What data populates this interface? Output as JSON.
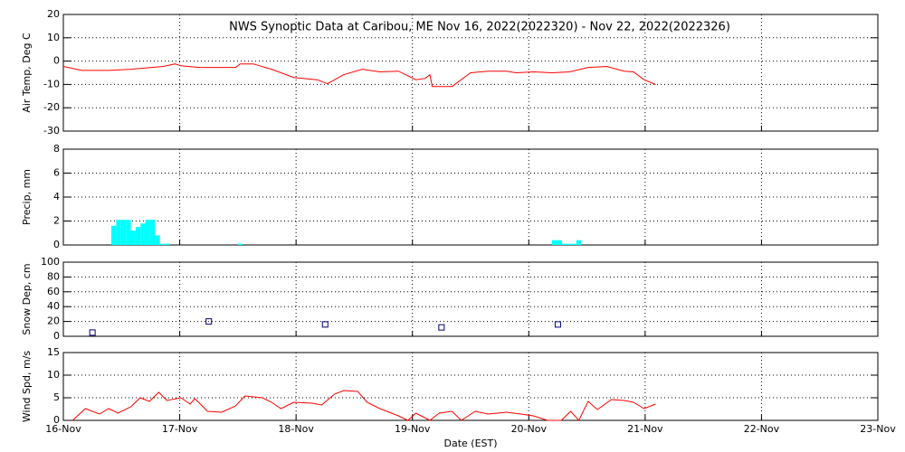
{
  "chart_data": [
    {
      "type": "line",
      "title": "NWS Synoptic Data at Caribou, ME   Nov 16, 2022(2022320) - Nov 22, 2022(2022326)",
      "y_label": "Air Temp, Deg C",
      "ylim": [
        -30,
        20
      ],
      "yticks": [
        -30,
        -20,
        -10,
        0,
        10,
        20
      ],
      "grid": true,
      "color": "#ff0000",
      "x": [
        0,
        0.16,
        0.39,
        0.58,
        0.7,
        0.86,
        0.96,
        1.01,
        1.17,
        1.48,
        1.52,
        1.63,
        1.79,
        1.98,
        2.18,
        2.27,
        2.41,
        2.57,
        2.72,
        2.88,
        3.03,
        3.11,
        3.15,
        3.17,
        3.27,
        3.34,
        3.5,
        3.65,
        3.81,
        3.89,
        4.04,
        4.2,
        4.35,
        4.51,
        4.67,
        4.82,
        4.9,
        4.99,
        5.09
      ],
      "values": [
        -2.3,
        -4,
        -4,
        -3.5,
        -3,
        -2.3,
        -1.2,
        -2,
        -2.7,
        -2.7,
        -1.2,
        -1.2,
        -3.5,
        -7,
        -8,
        -9.7,
        -5.8,
        -3.5,
        -4.6,
        -4.3,
        -8,
        -7.4,
        -5.8,
        -10.9,
        -10.9,
        -10.9,
        -5,
        -4.3,
        -4.3,
        -5,
        -4.6,
        -5,
        -4.6,
        -2.7,
        -2.3,
        -4.3,
        -4.6,
        -8,
        -10
      ]
    },
    {
      "type": "bar",
      "y_label": "Precip, mm",
      "ylim": [
        0,
        8
      ],
      "yticks": [
        0,
        2,
        4,
        6,
        8
      ],
      "grid": true,
      "color": "#00ffff",
      "x": [
        0.412,
        0.454,
        0.496,
        0.538,
        0.579,
        0.621,
        0.663,
        0.704,
        0.746,
        0.788,
        0.829,
        0.871,
        1.5,
        4.2,
        4.242,
        4.283,
        4.325,
        4.367,
        4.408
      ],
      "values": [
        1.6,
        2.1,
        2.1,
        2.1,
        1.2,
        1.5,
        1.8,
        2.1,
        2.1,
        0.8,
        0.1,
        0.1,
        0.1,
        0.4,
        0.4,
        0.1,
        0.1,
        0.1,
        0.4
      ]
    },
    {
      "type": "scatter",
      "y_label": "Snow Dep, cm",
      "ylim": [
        0,
        100
      ],
      "yticks": [
        0,
        20,
        40,
        60,
        80,
        100
      ],
      "grid": true,
      "color": "#000080",
      "x": [
        0.25,
        1.25,
        2.25,
        3.25,
        4.25
      ],
      "values": [
        5,
        20,
        16,
        12,
        16
      ]
    },
    {
      "type": "line",
      "y_label": "Wind Spd, m/s",
      "x_label": "Date (EST)",
      "ylim": [
        0,
        15
      ],
      "yticks": [
        0,
        5,
        10,
        15
      ],
      "grid": true,
      "color": "#ff0000",
      "xlim": [
        0,
        7
      ],
      "xticks": [
        {
          "value": 0,
          "label": "16-Nov"
        },
        {
          "value": 1,
          "label": "17-Nov"
        },
        {
          "value": 2,
          "label": "18-Nov"
        },
        {
          "value": 3,
          "label": "19-Nov"
        },
        {
          "value": 4,
          "label": "20-Nov"
        },
        {
          "value": 5,
          "label": "21-Nov"
        },
        {
          "value": 6,
          "label": "22-Nov"
        },
        {
          "value": 7,
          "label": "23-Nov"
        }
      ],
      "x": [
        0.08,
        0.19,
        0.31,
        0.39,
        0.47,
        0.58,
        0.66,
        0.74,
        0.82,
        0.89,
        1.01,
        1.09,
        1.13,
        1.24,
        1.36,
        1.48,
        1.56,
        1.71,
        1.79,
        1.87,
        1.98,
        2.14,
        2.22,
        2.33,
        2.41,
        2.53,
        2.61,
        2.72,
        2.88,
        2.96,
        3.03,
        3.15,
        3.23,
        3.34,
        3.42,
        3.54,
        3.65,
        3.81,
        3.93,
        4.04,
        4.16,
        4.28,
        4.36,
        4.43,
        4.51,
        4.59,
        4.71,
        4.82,
        4.9,
        4.99,
        5.09
      ],
      "values": [
        0,
        2.6,
        1.4,
        2.6,
        1.6,
        3,
        5,
        4.2,
        6.2,
        4.4,
        5,
        3.6,
        4.8,
        2,
        1.8,
        3.2,
        5.4,
        5,
        4,
        2.6,
        4,
        3.8,
        3.4,
        5.8,
        6.6,
        6.4,
        4,
        2.6,
        1,
        0,
        1.6,
        0,
        1.6,
        2,
        0,
        2,
        1.4,
        1.8,
        1.4,
        1,
        0,
        0,
        2,
        0,
        4.2,
        2.4,
        4.6,
        4.4,
        4,
        2.6,
        3.6
      ]
    }
  ]
}
